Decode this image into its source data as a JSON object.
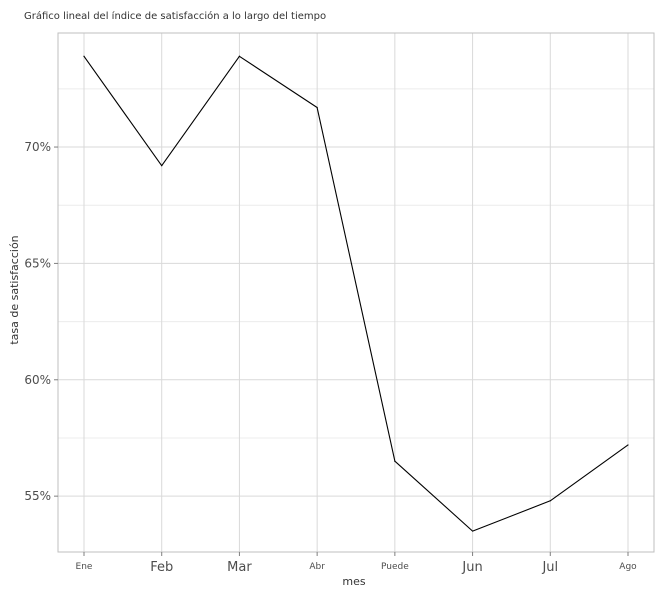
{
  "chart_data": {
    "type": "line",
    "title": "Gráfico lineal del índice de satisfacción a lo largo del tiempo",
    "xlabel": "mes",
    "ylabel": "tasa de satisfacción",
    "categories": [
      "Ene",
      "Feb",
      "Mar",
      "Abr",
      "Puede",
      "Jun",
      "Jul",
      "Ago"
    ],
    "values": [
      73.9,
      69.2,
      73.9,
      71.7,
      56.5,
      53.5,
      54.8,
      57.2
    ],
    "ylim": [
      52.6,
      74.9
    ],
    "yticks": [
      55,
      60,
      65,
      70
    ],
    "ytick_labels": [
      "55%",
      "60%",
      "65%",
      "70%"
    ],
    "grid": true,
    "line_color": "#000000",
    "grid_color": "#d9d9d9"
  }
}
